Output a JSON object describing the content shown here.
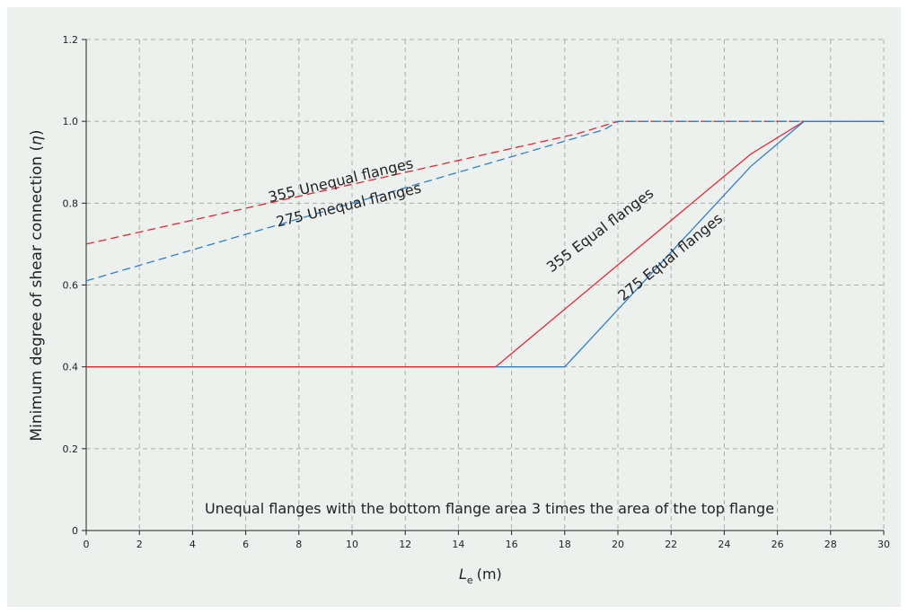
{
  "chart_data": {
    "type": "line",
    "xlabel_main": "L",
    "xlabel_sub": "e",
    "xlabel_unit": "(m)",
    "ylabel": "Minimum degree of shear connection (",
    "ylabel_symbol": "η",
    "ylabel_close": ")",
    "xlim": [
      0,
      30
    ],
    "ylim": [
      0,
      1.2
    ],
    "x_ticks": [
      "0",
      "2",
      "4",
      "6",
      "8",
      "10",
      "12",
      "14",
      "16",
      "18",
      "20",
      "22",
      "24",
      "26",
      "28",
      "30"
    ],
    "y_ticks": [
      "0",
      "0.2",
      "0.4",
      "0.6",
      "0.8",
      "1.0",
      "1.2"
    ],
    "grid": true,
    "annotation": "Unequal flanges with the bottom flange area 3 times the area of the top flange",
    "series": [
      {
        "name": "355 Unequal flanges",
        "color": "#e32636",
        "dash": true,
        "points": [
          [
            0,
            0.7
          ],
          [
            18.5,
            0.97
          ],
          [
            20,
            1.0
          ],
          [
            30,
            1.0
          ]
        ]
      },
      {
        "name": "275 Unequal flanges",
        "color": "#2e7fcc",
        "dash": true,
        "points": [
          [
            0,
            0.61
          ],
          [
            19.5,
            0.98
          ],
          [
            20,
            1.0
          ],
          [
            30,
            1.0
          ]
        ]
      },
      {
        "name": "355 Equal flanges",
        "color": "#e32636",
        "dash": false,
        "points": [
          [
            0,
            0.4
          ],
          [
            15.4,
            0.4
          ],
          [
            25,
            0.92
          ],
          [
            27,
            1.0
          ],
          [
            30,
            1.0
          ]
        ]
      },
      {
        "name": "275 Equal flanges",
        "color": "#2e7fcc",
        "dash": false,
        "points": [
          [
            15.4,
            0.4
          ],
          [
            18,
            0.4
          ],
          [
            25,
            0.89
          ],
          [
            27,
            1.0
          ],
          [
            30,
            1.0
          ]
        ]
      }
    ]
  }
}
